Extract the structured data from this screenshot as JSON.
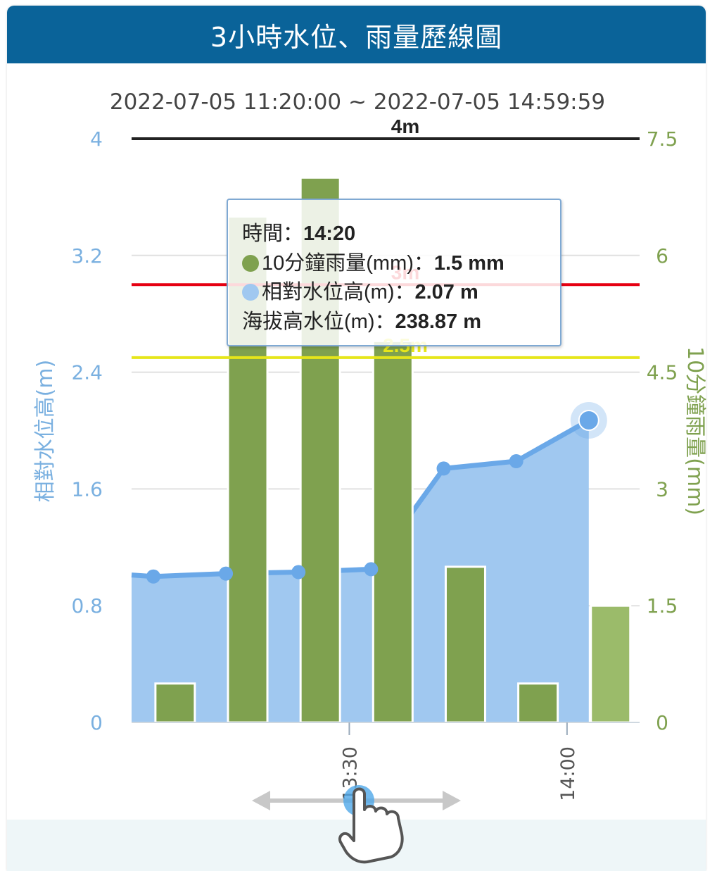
{
  "header": {
    "title": "3小時水位、雨量歷線圖"
  },
  "chart_data": {
    "type": "bar+area",
    "subtitle": "2022-07-05 11:20:00 ~ 2022-07-05 14:59:59",
    "y_left": {
      "label": "相對水位高(m)",
      "ylim": [
        0,
        4
      ],
      "ticks": [
        "0",
        "0.8",
        "1.6",
        "2.4",
        "3.2",
        "4"
      ]
    },
    "y_right": {
      "label": "10分鐘雨量(mm)",
      "ylim": [
        0,
        7.5
      ],
      "ticks": [
        "0",
        "1.5",
        "3",
        "4.5",
        "6",
        "7.5"
      ]
    },
    "x_ticks": [
      {
        "t": 50,
        "label": "13:30"
      },
      {
        "t": 80,
        "label": "14:00"
      }
    ],
    "x_range": [
      20,
      90
    ],
    "rainfall": [
      {
        "t": 26,
        "value": 0.5
      },
      {
        "t": 36,
        "value": 6.5
      },
      {
        "t": 46,
        "value": 7.0
      },
      {
        "t": 56,
        "value": 4.9
      },
      {
        "t": 66,
        "value": 2.0
      },
      {
        "t": 76,
        "value": 0.5
      },
      {
        "t": 86,
        "value": 1.5,
        "highlight": true
      }
    ],
    "water_level": [
      {
        "t": 20,
        "value": 1.01
      },
      {
        "t": 23,
        "value": 1.0
      },
      {
        "t": 33,
        "value": 1.02
      },
      {
        "t": 43,
        "value": 1.03
      },
      {
        "t": 53,
        "value": 1.05
      },
      {
        "t": 63,
        "value": 1.74
      },
      {
        "t": 73,
        "value": 1.79
      },
      {
        "t": 83,
        "value": 2.07,
        "highlight": true
      }
    ],
    "thresholds": [
      {
        "label": "4m",
        "value": 4.0,
        "color": "#222222"
      },
      {
        "label": "3m",
        "value": 3.0,
        "color": "#e60012"
      },
      {
        "label": "2.5m",
        "value": 2.5,
        "color": "#e6e61a"
      }
    ],
    "colors": {
      "rain": "#7fa14f",
      "rain_highlight": "#9bbb6a",
      "water_fill": "#a0c8f0",
      "water_line": "#6aa8e8",
      "left_axis": "#7ab0e0",
      "right_axis": "#7fa14f"
    }
  },
  "tooltip": {
    "time_label": "時間：",
    "time_value": "14:20",
    "rain_label": "10分鐘雨量(mm)：",
    "rain_value": "1.5 mm",
    "water_label": "相對水位高(m)：",
    "water_value": "2.07 m",
    "elev_label": "海拔高水位(m)：",
    "elev_value": "238.87 m"
  },
  "hint": {
    "icon": "swipe-hand-icon"
  }
}
